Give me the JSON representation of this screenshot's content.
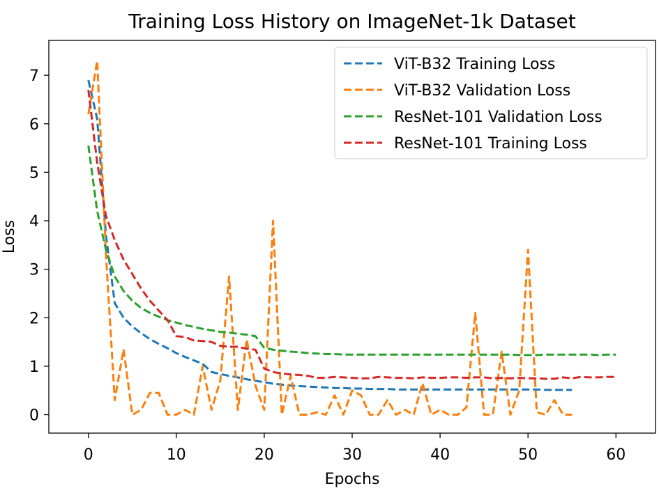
{
  "chart_data": {
    "type": "line",
    "title": "Training Loss History on ImageNet-1k Dataset",
    "xlabel": "Epochs",
    "ylabel": "Loss",
    "xlim": [
      -4.5,
      64.5
    ],
    "ylim": [
      -0.38,
      7.72
    ],
    "xticks": [
      0,
      10,
      20,
      30,
      40,
      50,
      60
    ],
    "yticks": [
      0,
      1,
      2,
      3,
      4,
      5,
      6,
      7
    ],
    "grid": false,
    "legend_position": "top-right",
    "line_style": "dashed",
    "series": [
      {
        "name": "ViT-B32 Training Loss",
        "color": "#1f77b4",
        "x": [
          0,
          1,
          2,
          3,
          4,
          5,
          6,
          7,
          8,
          9,
          10,
          11,
          12,
          13,
          14,
          15,
          16,
          17,
          18,
          19,
          20,
          21,
          22,
          23,
          24,
          25,
          26,
          27,
          28,
          29,
          30,
          31,
          32,
          33,
          34,
          35,
          36,
          37,
          38,
          39,
          40,
          41,
          42,
          43,
          44,
          45,
          46,
          47,
          48,
          49,
          50,
          51,
          52,
          53,
          54,
          55
        ],
        "values": [
          6.9,
          6.1,
          3.7,
          2.3,
          2.0,
          1.82,
          1.68,
          1.56,
          1.46,
          1.37,
          1.27,
          1.19,
          1.12,
          1.05,
          0.88,
          0.84,
          0.8,
          0.77,
          0.73,
          0.7,
          0.67,
          0.64,
          0.62,
          0.6,
          0.59,
          0.58,
          0.57,
          0.56,
          0.55,
          0.55,
          0.54,
          0.54,
          0.53,
          0.53,
          0.53,
          0.52,
          0.52,
          0.52,
          0.52,
          0.52,
          0.52,
          0.52,
          0.52,
          0.52,
          0.52,
          0.52,
          0.52,
          0.52,
          0.52,
          0.52,
          0.52,
          0.52,
          0.51,
          0.51,
          0.51,
          0.51
        ]
      },
      {
        "name": "ViT-B32 Validation Loss",
        "color": "#ff7f0e",
        "x": [
          0,
          1,
          2,
          3,
          4,
          5,
          6,
          7,
          8,
          9,
          10,
          11,
          12,
          13,
          14,
          15,
          16,
          17,
          18,
          19,
          20,
          21,
          22,
          23,
          24,
          25,
          26,
          27,
          28,
          29,
          30,
          31,
          32,
          33,
          34,
          35,
          36,
          37,
          38,
          39,
          40,
          41,
          42,
          43,
          44,
          45,
          46,
          47,
          48,
          49,
          50,
          51,
          52,
          53,
          54,
          55
        ],
        "values": [
          6.2,
          7.3,
          3.3,
          0.3,
          1.35,
          0.0,
          0.1,
          0.45,
          0.45,
          0.0,
          0.0,
          0.1,
          0.0,
          1.0,
          0.1,
          0.7,
          2.85,
          0.1,
          1.55,
          0.6,
          0.1,
          4.0,
          0.0,
          0.8,
          0.0,
          0.0,
          0.05,
          0.0,
          0.4,
          0.0,
          0.5,
          0.4,
          0.0,
          0.0,
          0.3,
          0.0,
          0.1,
          0.0,
          0.65,
          0.0,
          0.1,
          0.0,
          0.0,
          0.15,
          2.1,
          0.0,
          0.0,
          1.3,
          0.0,
          0.5,
          3.4,
          0.05,
          0.0,
          0.3,
          0.0,
          0.0
        ]
      },
      {
        "name": "ResNet-101 Validation Loss",
        "color": "#2ca02c",
        "x": [
          0,
          1,
          2,
          3,
          4,
          5,
          6,
          7,
          8,
          9,
          10,
          11,
          12,
          13,
          14,
          15,
          16,
          17,
          18,
          19,
          20,
          21,
          22,
          23,
          24,
          25,
          26,
          27,
          28,
          29,
          30,
          31,
          32,
          33,
          34,
          35,
          36,
          37,
          38,
          39,
          40,
          41,
          42,
          43,
          44,
          45,
          46,
          47,
          48,
          49,
          50,
          51,
          52,
          53,
          54,
          55,
          56,
          57,
          58,
          59,
          60
        ],
        "values": [
          5.55,
          4.2,
          3.4,
          2.85,
          2.55,
          2.35,
          2.2,
          2.1,
          2.02,
          1.95,
          1.9,
          1.85,
          1.81,
          1.77,
          1.74,
          1.71,
          1.69,
          1.67,
          1.65,
          1.62,
          1.38,
          1.34,
          1.32,
          1.3,
          1.29,
          1.27,
          1.26,
          1.25,
          1.25,
          1.24,
          1.24,
          1.24,
          1.24,
          1.24,
          1.24,
          1.24,
          1.24,
          1.24,
          1.24,
          1.24,
          1.24,
          1.24,
          1.24,
          1.24,
          1.24,
          1.24,
          1.24,
          1.24,
          1.24,
          1.23,
          1.23,
          1.23,
          1.24,
          1.24,
          1.24,
          1.24,
          1.24,
          1.24,
          1.23,
          1.24,
          1.24
        ]
      },
      {
        "name": "ResNet-101 Training Loss",
        "color": "#d62728",
        "x": [
          0,
          1,
          2,
          3,
          4,
          5,
          6,
          7,
          8,
          9,
          10,
          11,
          12,
          13,
          14,
          15,
          16,
          17,
          18,
          19,
          20,
          21,
          22,
          23,
          24,
          25,
          26,
          27,
          28,
          29,
          30,
          31,
          32,
          33,
          34,
          35,
          36,
          37,
          38,
          39,
          40,
          41,
          42,
          43,
          44,
          45,
          46,
          47,
          48,
          49,
          50,
          51,
          52,
          53,
          54,
          55,
          56,
          57,
          58,
          59,
          60
        ],
        "values": [
          6.7,
          5.2,
          4.1,
          3.6,
          3.2,
          2.9,
          2.6,
          2.35,
          2.15,
          1.95,
          1.62,
          1.6,
          1.53,
          1.52,
          1.5,
          1.42,
          1.4,
          1.4,
          1.36,
          1.34,
          0.95,
          0.88,
          0.85,
          0.83,
          0.82,
          0.8,
          0.76,
          0.76,
          0.78,
          0.77,
          0.76,
          0.75,
          0.75,
          0.78,
          0.77,
          0.76,
          0.76,
          0.75,
          0.77,
          0.76,
          0.76,
          0.77,
          0.77,
          0.76,
          0.77,
          0.77,
          0.75,
          0.76,
          0.75,
          0.76,
          0.75,
          0.75,
          0.74,
          0.74,
          0.77,
          0.75,
          0.78,
          0.77,
          0.77,
          0.78,
          0.78
        ]
      }
    ]
  }
}
